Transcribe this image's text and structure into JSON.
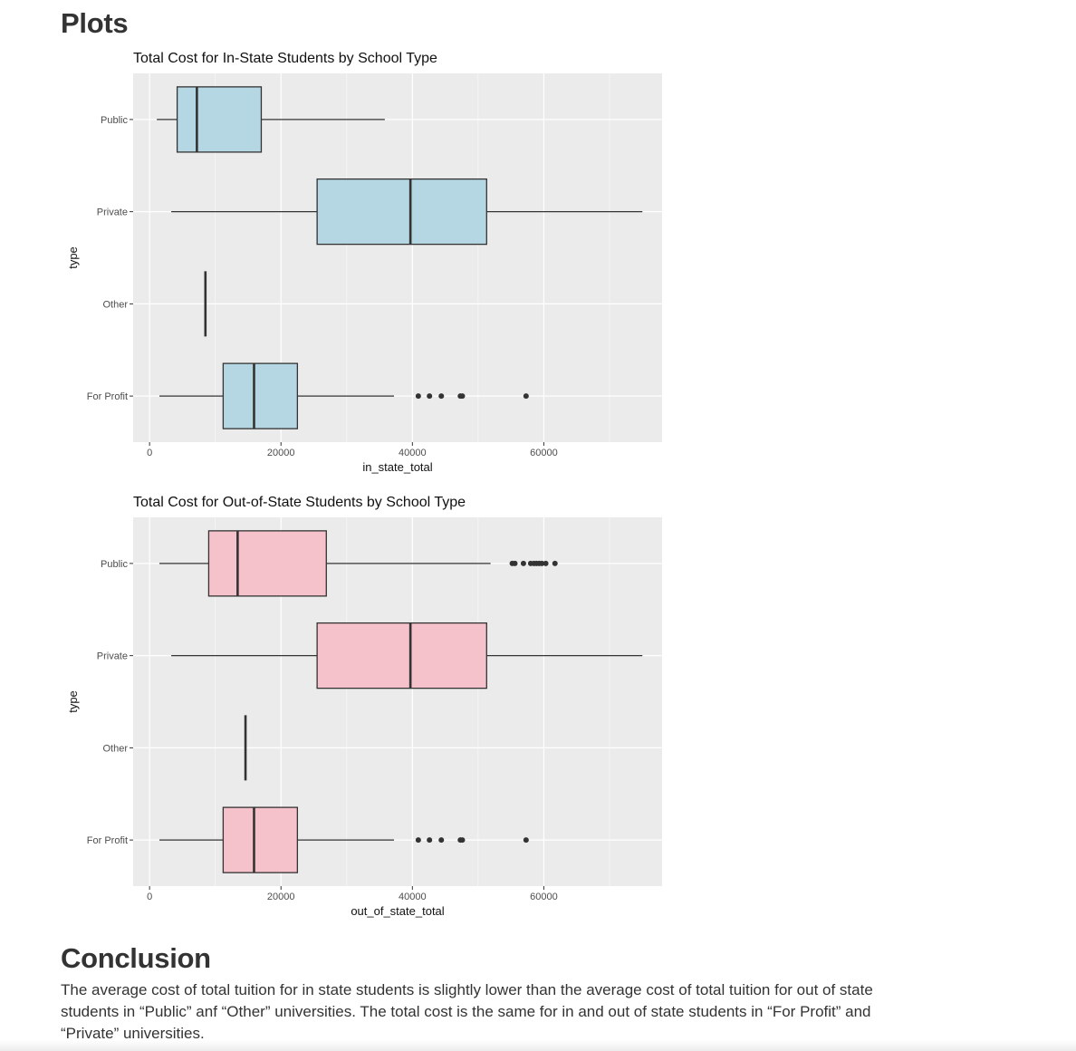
{
  "headings": {
    "plots": "Plots",
    "conclusion": "Conclusion"
  },
  "conclusion": {
    "text": "The average cost of total tuition for in state students is slightly lower than the average cost of total tuition for out of state students in “Public” anf “Other” universities. The total cost is the same for in and out of state students in “For Profit” and “Private” universities."
  },
  "colors": {
    "panel_bg": "#ebebeb",
    "grid": "#ffffff",
    "box_line": "#333333",
    "fill_in_state": "#b5d7e3",
    "fill_out_state": "#f5c1cb"
  },
  "chart_data": [
    {
      "type": "boxplot",
      "orientation": "horizontal",
      "title": "Total Cost for In-State Students by School Type",
      "xlabel": "in_state_total",
      "ylabel": "type",
      "xlim": [
        -2500,
        78000
      ],
      "xticks": [
        0,
        20000,
        40000,
        60000
      ],
      "categories": [
        "Public",
        "Private",
        "Other",
        "For Profit"
      ],
      "grid": true,
      "legend": "none",
      "fill": "#b5d7e3",
      "boxes": [
        {
          "category": "Public",
          "whisker_low": 1100,
          "q1": 4200,
          "median": 7200,
          "q3": 17000,
          "whisker_high": 35800,
          "outliers": []
        },
        {
          "category": "Private",
          "whisker_low": 3300,
          "q1": 25500,
          "median": 39700,
          "q3": 51300,
          "whisker_high": 75000,
          "outliers": []
        },
        {
          "category": "Other",
          "whisker_low": 8500,
          "q1": 8500,
          "median": 8500,
          "q3": 8500,
          "whisker_high": 8500,
          "outliers": []
        },
        {
          "category": "For Profit",
          "whisker_low": 1500,
          "q1": 11200,
          "median": 15900,
          "q3": 22500,
          "whisker_high": 37200,
          "outliers": [
            40900,
            42600,
            44400,
            47300,
            47600,
            57300
          ]
        }
      ]
    },
    {
      "type": "boxplot",
      "orientation": "horizontal",
      "title": "Total Cost for Out-of-State Students by School Type",
      "xlabel": "out_of_state_total",
      "ylabel": "type",
      "xlim": [
        -2500,
        78000
      ],
      "xticks": [
        0,
        20000,
        40000,
        60000
      ],
      "categories": [
        "Public",
        "Private",
        "Other",
        "For Profit"
      ],
      "grid": true,
      "legend": "none",
      "fill": "#f5c1cb",
      "boxes": [
        {
          "category": "Public",
          "whisker_low": 1500,
          "q1": 9000,
          "median": 13400,
          "q3": 26900,
          "whisker_high": 51900,
          "outliers": [
            55200,
            55600,
            56900,
            58000,
            58500,
            58900,
            59300,
            59700,
            60300,
            61700
          ]
        },
        {
          "category": "Private",
          "whisker_low": 3300,
          "q1": 25500,
          "median": 39700,
          "q3": 51300,
          "whisker_high": 75000,
          "outliers": []
        },
        {
          "category": "Other",
          "whisker_low": 14600,
          "q1": 14600,
          "median": 14600,
          "q3": 14600,
          "whisker_high": 14600,
          "outliers": []
        },
        {
          "category": "For Profit",
          "whisker_low": 1500,
          "q1": 11200,
          "median": 15900,
          "q3": 22500,
          "whisker_high": 37200,
          "outliers": [
            40900,
            42600,
            44400,
            47300,
            47600,
            57300
          ]
        }
      ]
    }
  ]
}
